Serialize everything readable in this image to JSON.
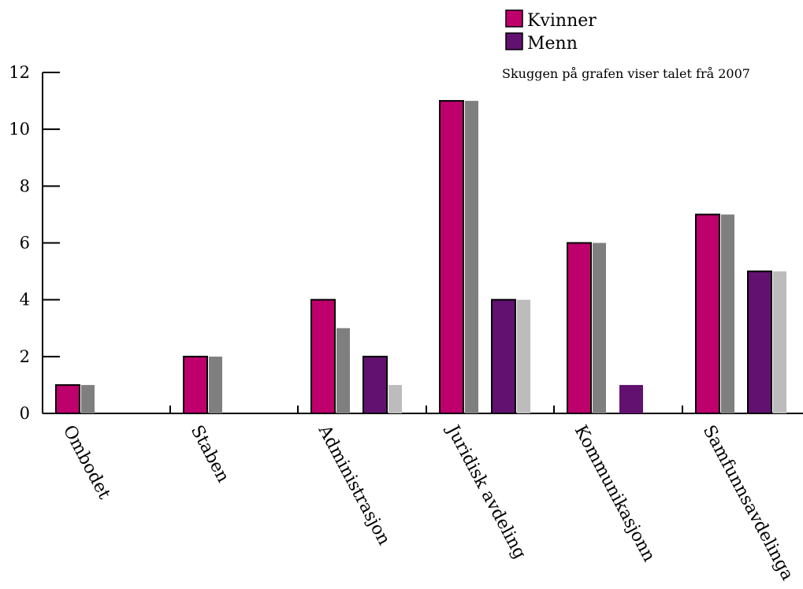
{
  "chart_data": {
    "type": "bar",
    "title": "",
    "xlabel": "",
    "ylabel": "",
    "ylim": [
      0,
      12
    ],
    "yticks": [
      0,
      2,
      4,
      6,
      8,
      10,
      12
    ],
    "grid": false,
    "legend_placement": "top-right",
    "note": "Skuggen på grafen viser talet frå 2007",
    "categories": [
      "Ombodet",
      "Staben",
      "Administrasjon",
      "Juridisk avdeling",
      "Kommunikasjonn",
      "Samfunnsavdelinga"
    ],
    "series": [
      {
        "name": "Kvinner",
        "values": [
          1,
          2,
          4,
          11,
          6,
          7
        ]
      },
      {
        "name": "Menn",
        "values": [
          0,
          0,
          2,
          4,
          1,
          5
        ]
      }
    ],
    "shadow_series": [
      {
        "of": "Kvinner",
        "values": [
          1,
          2,
          3,
          11,
          6,
          7
        ]
      },
      {
        "of": "Menn",
        "values": [
          0,
          0,
          1,
          4,
          0,
          5
        ]
      }
    ]
  },
  "colors": {
    "kvinner": "#be006d",
    "menn": "#621170",
    "kvinner_shadow": "#7f7f7f",
    "menn_shadow": "#bcbcbc",
    "axis": "#000000"
  }
}
